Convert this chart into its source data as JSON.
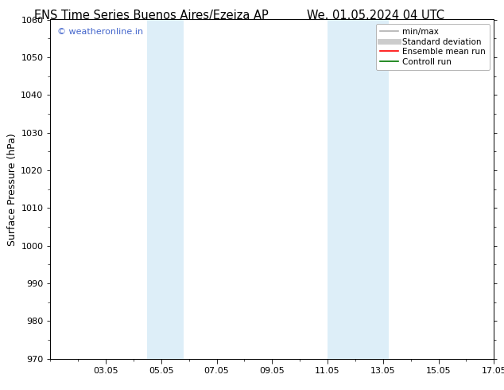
{
  "title_left": "ENS Time Series Buenos Aires/Ezeiza AP",
  "title_right": "We. 01.05.2024 04 UTC",
  "ylabel": "Surface Pressure (hPa)",
  "ylim": [
    970,
    1060
  ],
  "yticks": [
    970,
    980,
    990,
    1000,
    1010,
    1020,
    1030,
    1040,
    1050,
    1060
  ],
  "xlim": [
    1.0,
    17.0
  ],
  "xtick_positions": [
    3,
    5,
    7,
    9,
    11,
    13,
    15,
    17
  ],
  "xtick_labels": [
    "03.05",
    "05.05",
    "07.05",
    "09.05",
    "11.05",
    "13.05",
    "15.05",
    "17.05"
  ],
  "shaded_regions": [
    {
      "x_start": 4.5,
      "x_end": 5.8,
      "color": "#ddeef8"
    },
    {
      "x_start": 11.0,
      "x_end": 13.2,
      "color": "#ddeef8"
    }
  ],
  "watermark_text": "© weatheronline.in",
  "watermark_color": "#4466cc",
  "background_color": "#ffffff",
  "legend_items": [
    {
      "label": "min/max",
      "color": "#b0b0b0",
      "lw": 1.2
    },
    {
      "label": "Standard deviation",
      "color": "#cccccc",
      "lw": 5
    },
    {
      "label": "Ensemble mean run",
      "color": "#ff0000",
      "lw": 1.2
    },
    {
      "label": "Controll run",
      "color": "#007700",
      "lw": 1.2
    }
  ],
  "title_fontsize": 10.5,
  "ylabel_fontsize": 9,
  "tick_fontsize": 8,
  "watermark_fontsize": 8,
  "legend_fontsize": 7.5
}
